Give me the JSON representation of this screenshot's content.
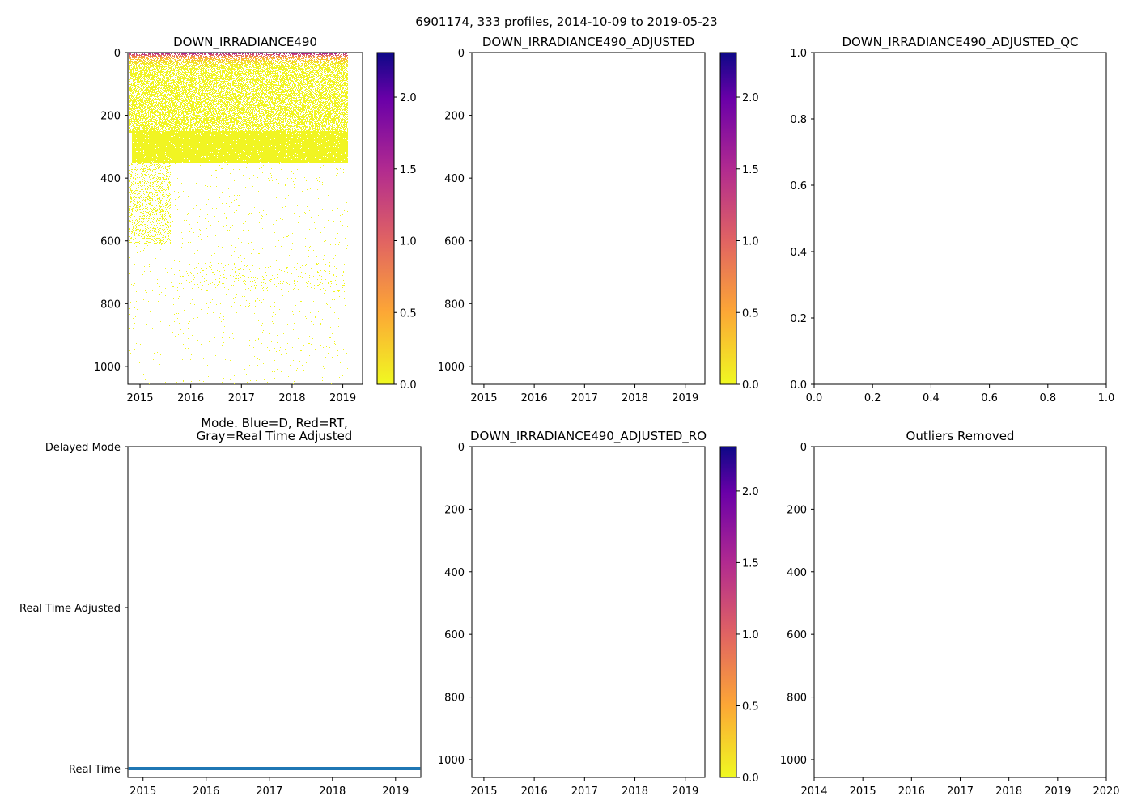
{
  "figure_title": "6901174, 333 profiles, 2014-10-09 to 2019-05-23",
  "colors": {
    "mode_line": "#1f77b4",
    "cmap": [
      "#f0f921",
      "#fca636",
      "#e16462",
      "#b12a90",
      "#6a00a8",
      "#0d0887"
    ]
  },
  "chart_data": [
    {
      "id": "raw",
      "type": "heatmap",
      "title": "DOWN_IRRADIANCE490",
      "xlim": [
        2014.76,
        2019.39
      ],
      "ylim": [
        1057,
        0
      ],
      "xticks": [
        2015,
        2016,
        2017,
        2018,
        2019
      ],
      "yticks": [
        0,
        200,
        400,
        600,
        800,
        1000
      ],
      "profiles": 333,
      "date_range": [
        "2014-10-09",
        "2019-05-23"
      ],
      "colorbar": {
        "range": [
          0,
          2.31
        ],
        "ticks": [
          0.0,
          0.5,
          1.0,
          1.5,
          2.0
        ],
        "cmap": "plasma_r"
      },
      "description_of_values": {
        "surface_0_30m": "0.3-1.7",
        "30_350m": "~0.0",
        "350_1050m": "sparse ~0.0"
      }
    },
    {
      "id": "adj",
      "type": "heatmap",
      "title": "DOWN_IRRADIANCE490_ADJUSTED",
      "xlim": [
        2014.76,
        2019.39
      ],
      "ylim": [
        1057,
        0
      ],
      "xticks": [
        2015,
        2016,
        2017,
        2018,
        2019
      ],
      "yticks": [
        0,
        200,
        400,
        600,
        800,
        1000
      ],
      "colorbar": {
        "range": [
          0,
          2.31
        ],
        "ticks": [
          0.0,
          0.5,
          1.0,
          1.5,
          2.0
        ],
        "cmap": "plasma_r"
      }
    },
    {
      "id": "qc",
      "type": "scatter",
      "title": "DOWN_IRRADIANCE490_ADJUSTED_QC",
      "xlim": [
        0,
        1
      ],
      "ylim": [
        0,
        1
      ],
      "xticks": [
        0.0,
        0.2,
        0.4,
        0.6,
        0.8,
        1.0
      ],
      "yticks": [
        0.0,
        0.2,
        0.4,
        0.6,
        0.8,
        1.0
      ]
    },
    {
      "id": "mode",
      "type": "line",
      "title": "Mode. Blue=D, Red=RT,\nGray=Real Time Adjusted",
      "xlim": [
        2014.76,
        2019.4
      ],
      "xticks": [
        2015,
        2016,
        2017,
        2018,
        2019
      ],
      "ycategories": [
        "Real Time",
        "Real Time Adjusted",
        "Delayed Mode"
      ],
      "series": [
        {
          "name": "mode",
          "x": [
            2014.77,
            2019.39
          ],
          "y": [
            "Real Time",
            "Real Time"
          ]
        }
      ]
    },
    {
      "id": "ro",
      "type": "heatmap",
      "title": "DOWN_IRRADIANCE490_ADJUSTED_RO",
      "xlim": [
        2014.76,
        2019.39
      ],
      "ylim": [
        1057,
        0
      ],
      "xticks": [
        2015,
        2016,
        2017,
        2018,
        2019
      ],
      "yticks": [
        0,
        200,
        400,
        600,
        800,
        1000
      ],
      "colorbar": {
        "range": [
          0,
          2.31
        ],
        "ticks": [
          0.0,
          0.5,
          1.0,
          1.5,
          2.0
        ],
        "cmap": "plasma_r"
      }
    },
    {
      "id": "out",
      "type": "scatter",
      "title": "Outliers Removed",
      "xlim": [
        2014,
        2020
      ],
      "ylim": [
        1057,
        0
      ],
      "xticks": [
        2014,
        2015,
        2016,
        2017,
        2018,
        2019,
        2020
      ],
      "yticks": [
        0,
        200,
        400,
        600,
        800,
        1000
      ]
    }
  ]
}
